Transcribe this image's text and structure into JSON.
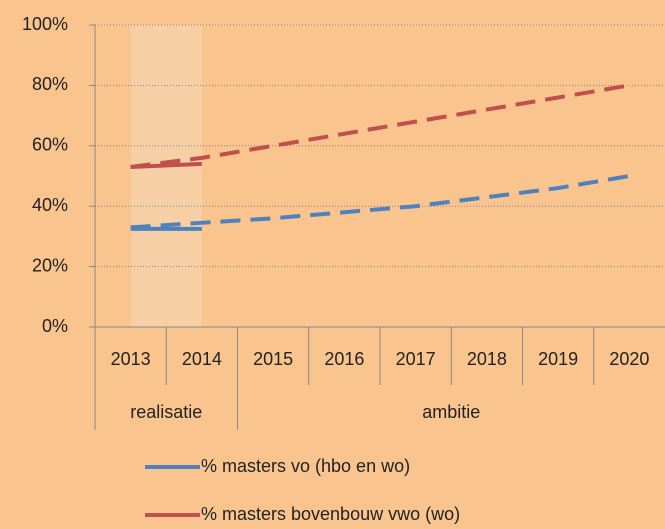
{
  "chart_data": {
    "type": "line",
    "categories": [
      "2013",
      "2014",
      "2015",
      "2016",
      "2017",
      "2018",
      "2019",
      "2020"
    ],
    "groups": [
      {
        "label": "realisatie",
        "span": 2
      },
      {
        "label": "ambitie",
        "span": 6
      }
    ],
    "shade": {
      "from": "2013",
      "to": "2014",
      "color": "#f7cfa4"
    },
    "series": [
      {
        "name": "% masters vo (hbo en wo)",
        "color": "#4f81bd",
        "values": [
          32.5,
          32.5,
          null,
          null,
          null,
          null,
          null,
          null
        ],
        "target_values": [
          33,
          34.5,
          36,
          38,
          40,
          43,
          46,
          50
        ]
      },
      {
        "name": "% masters bovenbouw vwo (wo)",
        "color": "#c0504d",
        "values": [
          53,
          54,
          null,
          null,
          null,
          null,
          null,
          null
        ],
        "target_values": [
          53,
          56,
          60,
          64,
          68,
          72,
          76,
          80
        ]
      }
    ],
    "ylim": [
      0,
      100
    ],
    "yticks": [
      {
        "value": 0,
        "label": "0%"
      },
      {
        "value": 20,
        "label": "20%"
      },
      {
        "value": 40,
        "label": "40%"
      },
      {
        "value": 60,
        "label": "60%"
      },
      {
        "value": 80,
        "label": "80%"
      },
      {
        "value": 100,
        "label": "100%"
      }
    ],
    "grid": true
  }
}
